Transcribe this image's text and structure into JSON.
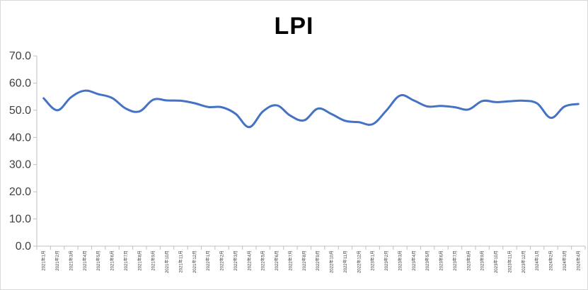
{
  "chart_data": {
    "type": "line",
    "title": "LPI",
    "xlabel": "",
    "ylabel": "",
    "ylim": [
      0,
      70
    ],
    "yticks": [
      "0.0",
      "10.0",
      "20.0",
      "30.0",
      "40.0",
      "50.0",
      "60.0",
      "70.0"
    ],
    "grid": false,
    "legend": "none",
    "line_color": "#4472c4",
    "categories": [
      "2021年1月",
      "2021年2月",
      "2021年3月",
      "2021年4月",
      "2021年5月",
      "2021年6月",
      "2021年7月",
      "2021年8月",
      "2021年9月",
      "2021年10月",
      "2021年11月",
      "2021年12月",
      "2022年1月",
      "2022年2月",
      "2022年3月",
      "2022年4月",
      "2022年5月",
      "2022年6月",
      "2022年7月",
      "2022年8月",
      "2022年9月",
      "2022年10月",
      "2022年11月",
      "2022年12月",
      "2023年1月",
      "2023年2月",
      "2023年3月",
      "2023年4月",
      "2023年5月",
      "2023年6月",
      "2023年7月",
      "2023年8月",
      "2023年9月",
      "2023年10月",
      "2023年11月",
      "2023年12月",
      "2024年1月",
      "2024年2月",
      "2024年3月",
      "2024年4月"
    ],
    "series": [
      {
        "values": [
          54.4,
          50.0,
          54.8,
          57.2,
          55.9,
          54.5,
          50.6,
          49.6,
          53.9,
          53.6,
          53.5,
          52.6,
          51.2,
          51.1,
          48.7,
          43.8,
          49.6,
          51.8,
          48.0,
          46.3,
          50.6,
          48.6,
          46.1,
          45.6,
          44.9,
          49.9,
          55.4,
          53.6,
          51.4,
          51.6,
          51.1,
          50.3,
          53.4,
          53.0,
          53.3,
          53.5,
          52.5,
          47.2,
          51.4,
          52.3
        ]
      }
    ]
  }
}
